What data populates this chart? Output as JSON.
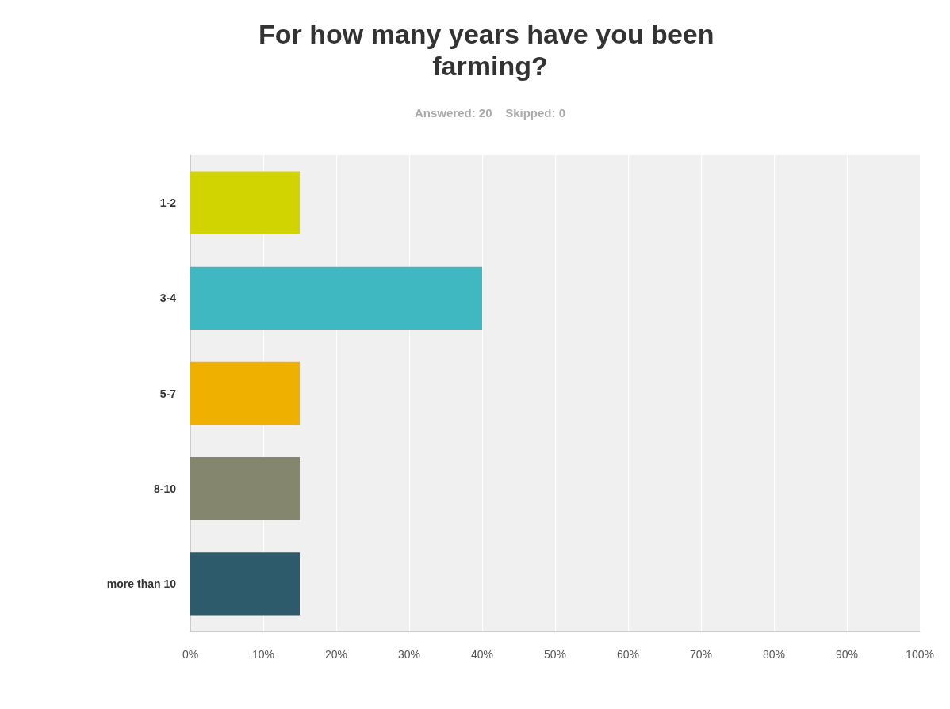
{
  "chart_data": {
    "type": "bar",
    "orientation": "horizontal",
    "title": "For how many years have you been farming?",
    "subtitle": "Answered: 20    Skipped: 0",
    "categories": [
      "1-2",
      "3-4",
      "5-7",
      "8-10",
      "more than 10"
    ],
    "values": [
      15,
      40,
      15,
      15,
      15
    ],
    "colors": [
      "#d1d400",
      "#40b8c2",
      "#f0b000",
      "#85866e",
      "#2e5b6b"
    ],
    "xlim": [
      0,
      100
    ],
    "xticks": [
      {
        "value": 0,
        "label": "0%"
      },
      {
        "value": 10,
        "label": "10%"
      },
      {
        "value": 20,
        "label": "20%"
      },
      {
        "value": 30,
        "label": "30%"
      },
      {
        "value": 40,
        "label": "40%"
      },
      {
        "value": 50,
        "label": "50%"
      },
      {
        "value": 60,
        "label": "60%"
      },
      {
        "value": 70,
        "label": "70%"
      },
      {
        "value": 80,
        "label": "80%"
      },
      {
        "value": 90,
        "label": "90%"
      },
      {
        "value": 100,
        "label": "100%"
      }
    ],
    "grid": "x"
  }
}
